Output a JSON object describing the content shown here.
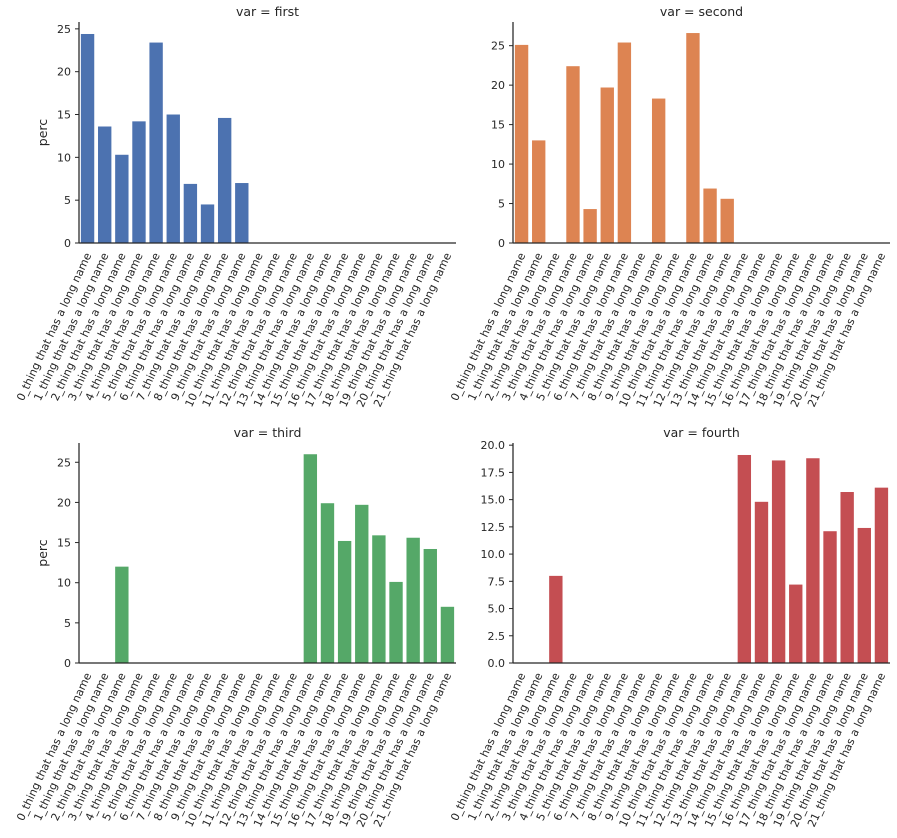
{
  "figure": {
    "ylabel": "perc",
    "category_labels": [
      "0_thing that has a long name",
      "1_thing that has a long name",
      "2_thing that has a long name",
      "3_thing that has a long name",
      "4_thing that has a long name",
      "5_thing that has a long name",
      "6_thing that has a long name",
      "7_thing that has a long name",
      "8_thing that has a long name",
      "9_thing that has a long name",
      "10_thing that has a long name",
      "11_thing that has a long name",
      "12_thing that has a long name",
      "13_thing that has a long name",
      "14_thing that has a long name",
      "15_thing that has a long name",
      "16_thing that has a long name",
      "17_thing that has a long name",
      "18_thing that has a long name",
      "19_thing that has a long name",
      "20_thing that has a long name",
      "21_thing that has a long name"
    ]
  },
  "chart_data": [
    {
      "type": "bar",
      "title": "var = first",
      "ylabel": "perc",
      "color": "#4c72b0",
      "ylim": [
        0,
        25.8
      ],
      "yticks": [
        0,
        5,
        10,
        15,
        20,
        25
      ],
      "ytick_labels": [
        "0",
        "5",
        "10",
        "15",
        "20",
        "25"
      ],
      "values": [
        24.4,
        13.6,
        10.3,
        14.2,
        23.4,
        15.0,
        6.9,
        4.5,
        14.6,
        7.0,
        null,
        null,
        null,
        null,
        null,
        null,
        null,
        null,
        null,
        null,
        null,
        null
      ]
    },
    {
      "type": "bar",
      "title": "var = second",
      "ylabel": "",
      "color": "#dd8452",
      "ylim": [
        0,
        28.0
      ],
      "yticks": [
        0,
        5,
        10,
        15,
        20,
        25
      ],
      "ytick_labels": [
        "0",
        "5",
        "10",
        "15",
        "20",
        "25"
      ],
      "values": [
        25.1,
        13.0,
        null,
        22.4,
        4.3,
        19.7,
        25.4,
        null,
        18.3,
        null,
        26.6,
        6.9,
        5.6,
        null,
        null,
        null,
        null,
        null,
        null,
        null,
        null,
        null
      ]
    },
    {
      "type": "bar",
      "title": "var = third",
      "ylabel": "perc",
      "color": "#55a868",
      "ylim": [
        0,
        27.4
      ],
      "yticks": [
        0,
        5,
        10,
        15,
        20,
        25
      ],
      "ytick_labels": [
        "0",
        "5",
        "10",
        "15",
        "20",
        "25"
      ],
      "values": [
        null,
        null,
        12.0,
        null,
        null,
        null,
        null,
        null,
        null,
        null,
        null,
        null,
        null,
        26.0,
        19.9,
        15.2,
        19.7,
        15.9,
        10.1,
        15.6,
        14.2,
        7.0
      ]
    },
    {
      "type": "bar",
      "title": "var = fourth",
      "ylabel": "",
      "color": "#c44e52",
      "ylim": [
        0,
        20.2
      ],
      "yticks": [
        0,
        2.5,
        5,
        7.5,
        10,
        12.5,
        15,
        17.5,
        20
      ],
      "ytick_labels": [
        "0.0",
        "2.5",
        "5.0",
        "7.5",
        "10.0",
        "12.5",
        "15.0",
        "17.5",
        "20.0"
      ],
      "values": [
        null,
        null,
        8.0,
        null,
        null,
        null,
        null,
        null,
        null,
        null,
        null,
        null,
        null,
        19.1,
        14.8,
        18.6,
        7.2,
        18.8,
        12.1,
        15.7,
        12.4,
        16.1
      ]
    }
  ]
}
